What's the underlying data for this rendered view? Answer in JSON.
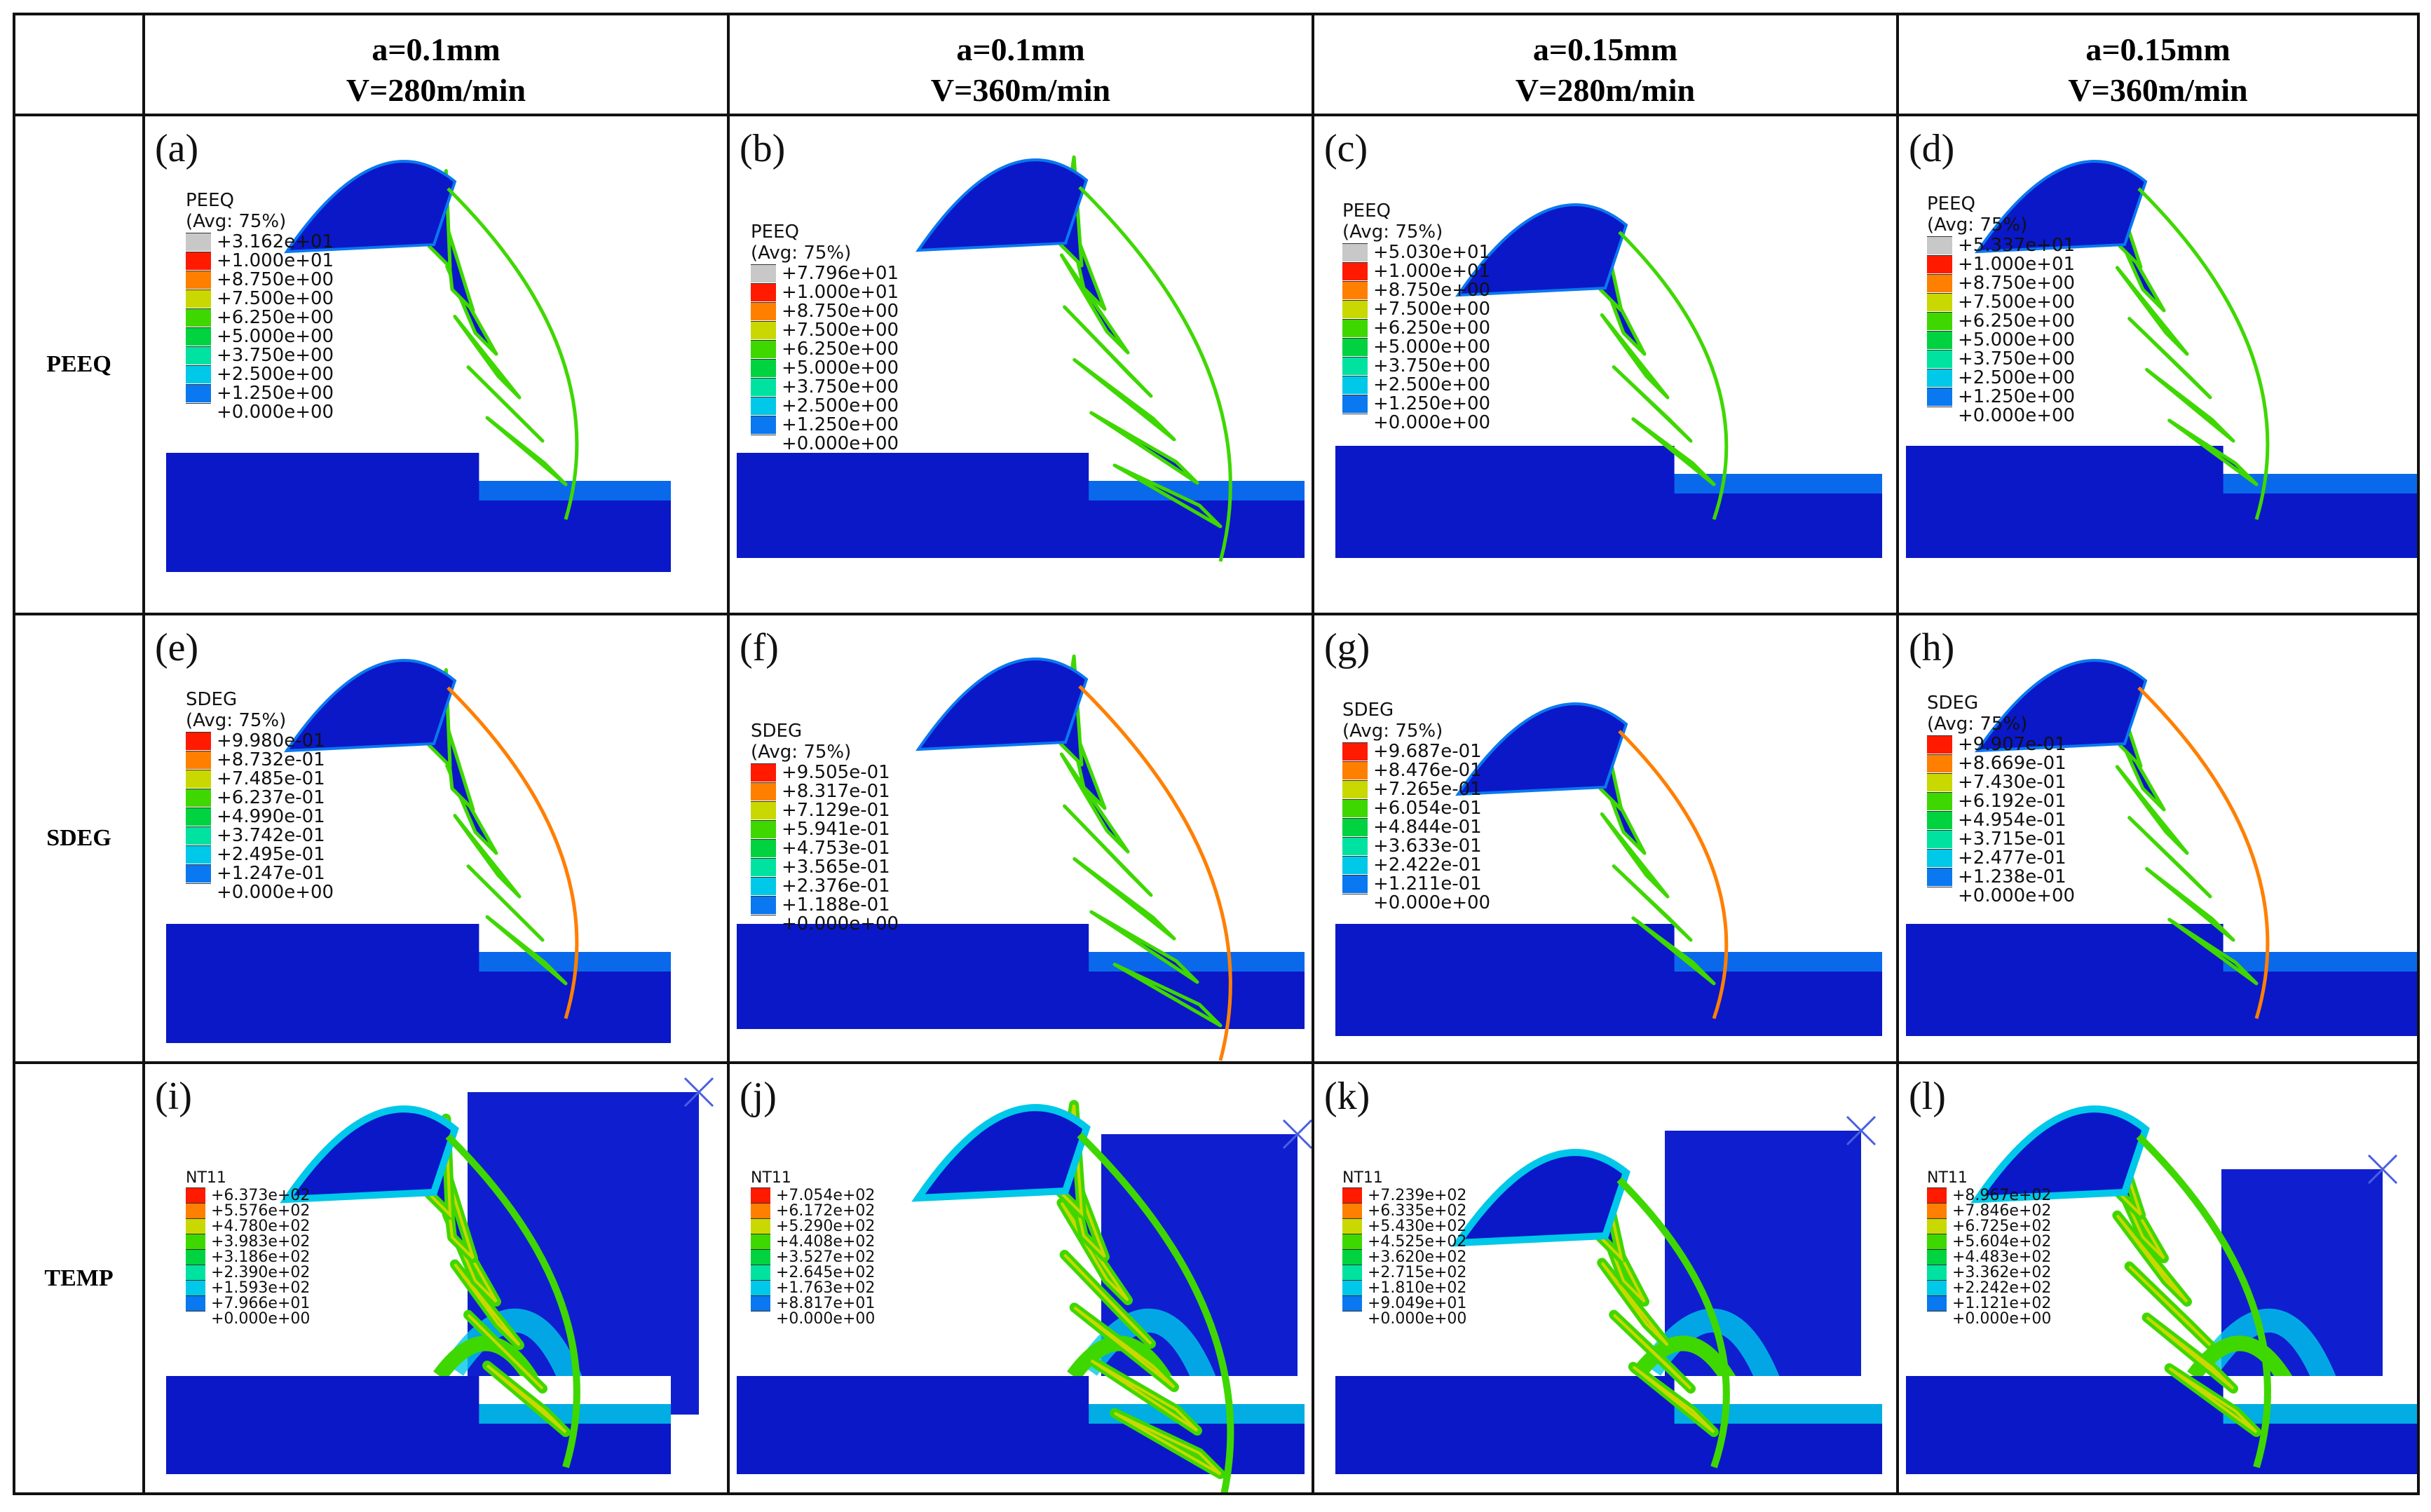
{
  "figure": {
    "corner": "",
    "columns": [
      {
        "line1": "a=0.1mm",
        "line2": "V=280m/min"
      },
      {
        "line1": "a=0.1mm",
        "line2": "V=360m/min"
      },
      {
        "line1": "a=0.15mm",
        "line2": "V=280m/min"
      },
      {
        "line1": "a=0.15mm",
        "line2": "V=360m/min"
      }
    ],
    "rows": [
      {
        "label": "PEEQ",
        "panels": [
          {
            "id": "(a)",
            "title": "PEEQ",
            "avg": "(Avg: 75%)",
            "values": [
              "+3.162e+01",
              "+1.000e+01",
              "+8.750e+00",
              "+7.500e+00",
              "+6.250e+00",
              "+5.000e+00",
              "+3.750e+00",
              "+2.500e+00",
              "+1.250e+00",
              "+0.000e+00"
            ]
          },
          {
            "id": "(b)",
            "title": "PEEQ",
            "avg": "(Avg: 75%)",
            "values": [
              "+7.796e+01",
              "+1.000e+01",
              "+8.750e+00",
              "+7.500e+00",
              "+6.250e+00",
              "+5.000e+00",
              "+3.750e+00",
              "+2.500e+00",
              "+1.250e+00",
              "+0.000e+00"
            ]
          },
          {
            "id": "(c)",
            "title": "PEEQ",
            "avg": "(Avg: 75%)",
            "values": [
              "+5.030e+01",
              "+1.000e+01",
              "+8.750e+00",
              "+7.500e+00",
              "+6.250e+00",
              "+5.000e+00",
              "+3.750e+00",
              "+2.500e+00",
              "+1.250e+00",
              "+0.000e+00"
            ]
          },
          {
            "id": "(d)",
            "title": "PEEQ",
            "avg": "(Avg: 75%)",
            "values": [
              "+5.337e+01",
              "+1.000e+01",
              "+8.750e+00",
              "+7.500e+00",
              "+6.250e+00",
              "+5.000e+00",
              "+3.750e+00",
              "+2.500e+00",
              "+1.250e+00",
              "+0.000e+00"
            ]
          }
        ]
      },
      {
        "label": "SDEG",
        "panels": [
          {
            "id": "(e)",
            "title": "SDEG",
            "avg": "(Avg: 75%)",
            "values": [
              "+9.980e-01",
              "+8.732e-01",
              "+7.485e-01",
              "+6.237e-01",
              "+4.990e-01",
              "+3.742e-01",
              "+2.495e-01",
              "+1.247e-01",
              "+0.000e+00"
            ]
          },
          {
            "id": "(f)",
            "title": "SDEG",
            "avg": "(Avg: 75%)",
            "values": [
              "+9.505e-01",
              "+8.317e-01",
              "+7.129e-01",
              "+5.941e-01",
              "+4.753e-01",
              "+3.565e-01",
              "+2.376e-01",
              "+1.188e-01",
              "+0.000e+00"
            ]
          },
          {
            "id": "(g)",
            "title": "SDEG",
            "avg": "(Avg: 75%)",
            "values": [
              "+9.687e-01",
              "+8.476e-01",
              "+7.265e-01",
              "+6.054e-01",
              "+4.844e-01",
              "+3.633e-01",
              "+2.422e-01",
              "+1.211e-01",
              "+0.000e+00"
            ]
          },
          {
            "id": "(h)",
            "title": "SDEG",
            "avg": "(Avg: 75%)",
            "values": [
              "+9.907e-01",
              "+8.669e-01",
              "+7.430e-01",
              "+6.192e-01",
              "+4.954e-01",
              "+3.715e-01",
              "+2.477e-01",
              "+1.238e-01",
              "+0.000e+00"
            ]
          }
        ]
      },
      {
        "label": "TEMP",
        "panels": [
          {
            "id": "(i)",
            "title": "NT11",
            "avg": "",
            "values": [
              "+6.373e+02",
              "+5.576e+02",
              "+4.780e+02",
              "+3.983e+02",
              "+3.186e+02",
              "+2.390e+02",
              "+1.593e+02",
              "+7.966e+01",
              "+0.000e+00"
            ]
          },
          {
            "id": "(j)",
            "title": "NT11",
            "avg": "",
            "values": [
              "+7.054e+02",
              "+6.172e+02",
              "+5.290e+02",
              "+4.408e+02",
              "+3.527e+02",
              "+2.645e+02",
              "+1.763e+02",
              "+8.817e+01",
              "+0.000e+00"
            ]
          },
          {
            "id": "(k)",
            "title": "NT11",
            "avg": "",
            "values": [
              "+7.239e+02",
              "+6.335e+02",
              "+5.430e+02",
              "+4.525e+02",
              "+3.620e+02",
              "+2.715e+02",
              "+1.810e+02",
              "+9.049e+01",
              "+0.000e+00"
            ]
          },
          {
            "id": "(l)",
            "title": "NT11",
            "avg": "",
            "values": [
              "+8.967e+02",
              "+7.846e+02",
              "+6.725e+02",
              "+5.604e+02",
              "+4.483e+02",
              "+3.362e+02",
              "+2.242e+02",
              "+1.121e+02",
              "+0.000e+00"
            ]
          }
        ]
      }
    ]
  },
  "colors": {
    "grey": "#c8c8c8",
    "red": "#ff1a00",
    "orange": "#ff7f00",
    "yellow_green": "#c8d800",
    "green": "#3fd700",
    "green2": "#00d240",
    "cyan_green": "#00e2a0",
    "cyan": "#00c8e8",
    "blue_light": "#0a78f0",
    "blue": "#0014d2",
    "workpiece": "#0a18c8",
    "tool": "#0f1fcf"
  }
}
